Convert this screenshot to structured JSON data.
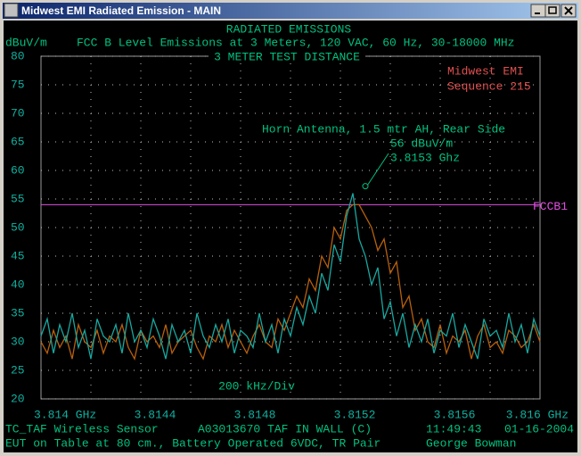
{
  "window": {
    "title": "Midwest EMI Radiated Emission - MAIN"
  },
  "chart_data": {
    "type": "line",
    "title": "RADIATED EMISSIONS",
    "subtitles": [
      "FCC B Level Emissions at 3 Meters, 120 VAC, 60 Hz, 30-18000 MHz",
      "3 METER TEST DISTANCE"
    ],
    "y_label": "dBuV/m",
    "x_label": "200 kHz/Div",
    "annotations": [
      "Midwest EMI",
      "Sequence 215"
    ],
    "ylim": [
      20,
      80
    ],
    "yticks": [
      20,
      25,
      30,
      35,
      40,
      45,
      50,
      55,
      60,
      65,
      70,
      75,
      80
    ],
    "xlim": [
      3.814,
      3.816
    ],
    "xticks": [
      {
        "value": 3.814,
        "label": "3.814 GHz"
      },
      3.8144,
      3.8148,
      3.8152,
      3.8156,
      {
        "value": 3.816,
        "label": "3.816 GHz"
      }
    ],
    "xgrid": [
      3.8142,
      3.8146,
      3.815,
      3.8154,
      3.8158
    ],
    "grid": true,
    "x": [
      3.814,
      3.814025,
      3.81405,
      3.814075,
      3.8141,
      3.814125,
      3.81415,
      3.814175,
      3.8142,
      3.814225,
      3.81425,
      3.814275,
      3.8143,
      3.814325,
      3.81435,
      3.814375,
      3.8144,
      3.814425,
      3.81445,
      3.814475,
      3.8145,
      3.814525,
      3.81455,
      3.814575,
      3.8146,
      3.814625,
      3.81465,
      3.814675,
      3.8147,
      3.814725,
      3.81475,
      3.814775,
      3.8148,
      3.814825,
      3.81485,
      3.814875,
      3.8149,
      3.814925,
      3.81495,
      3.814975,
      3.815,
      3.815025,
      3.81505,
      3.815075,
      3.8151,
      3.815125,
      3.81515,
      3.815175,
      3.8152,
      3.815225,
      3.81525,
      3.815275,
      3.8153,
      3.815325,
      3.81535,
      3.815375,
      3.8154,
      3.815425,
      3.81545,
      3.815475,
      3.8155,
      3.815525,
      3.81555,
      3.815575,
      3.8156,
      3.815625,
      3.81565,
      3.815675,
      3.8157,
      3.815725,
      3.81575,
      3.815775,
      3.8158,
      3.815825,
      3.81585,
      3.815875,
      3.8159,
      3.815925,
      3.81595,
      3.815975,
      3.816
    ],
    "series": [
      {
        "color": "#b8600c",
        "values": [
          30,
          28,
          32,
          29,
          31,
          27,
          33,
          30,
          29,
          32,
          28,
          31,
          30,
          33,
          29,
          27,
          32,
          30,
          31,
          29,
          33,
          28,
          30,
          31,
          32,
          29,
          27,
          31,
          30,
          33,
          29,
          32,
          30,
          28,
          31,
          33,
          30,
          29,
          34,
          32,
          35,
          38,
          36,
          41,
          39,
          45,
          43,
          50,
          48,
          53,
          54,
          54,
          52,
          50,
          46,
          48,
          42,
          44,
          36,
          38,
          32,
          34,
          30,
          29,
          33,
          28,
          31,
          30,
          32,
          27,
          31,
          33,
          29,
          30,
          28,
          32,
          31,
          29,
          30,
          33,
          30
        ]
      },
      {
        "color": "#18a8a0",
        "values": [
          31,
          34,
          28,
          33,
          30,
          35,
          29,
          32,
          27,
          34,
          31,
          30,
          33,
          28,
          35,
          30,
          32,
          29,
          34,
          31,
          27,
          33,
          30,
          32,
          28,
          35,
          31,
          29,
          33,
          30,
          34,
          28,
          32,
          31,
          29,
          35,
          30,
          33,
          28,
          34,
          31,
          36,
          33,
          38,
          35,
          42,
          39,
          47,
          44,
          52,
          56,
          48,
          45,
          40,
          43,
          34,
          37,
          31,
          35,
          29,
          33,
          30,
          34,
          28,
          32,
          31,
          35,
          29,
          33,
          30,
          27,
          34,
          31,
          32,
          29,
          35,
          30,
          33,
          28,
          34,
          31
        ]
      }
    ],
    "limit_line": {
      "name": "FCCB1",
      "value": 54,
      "color": "#e050e0"
    },
    "marker": {
      "x": 3.8153,
      "y": 56,
      "texts": [
        "Horn Antenna, 1.5 mtr AH, Rear Side",
        "56 dBuV/m",
        "3.8153 Ghz"
      ]
    }
  },
  "footer": {
    "rows": [
      [
        "TC_TAF Wireless Sensor",
        "A03013670 TAF IN WALL (C)",
        "11:49:43",
        "01-16-2004"
      ],
      [
        "EUT on Table at 80 cm., Battery Operated 6VDC, TR Pair",
        "George Bowman"
      ]
    ]
  }
}
